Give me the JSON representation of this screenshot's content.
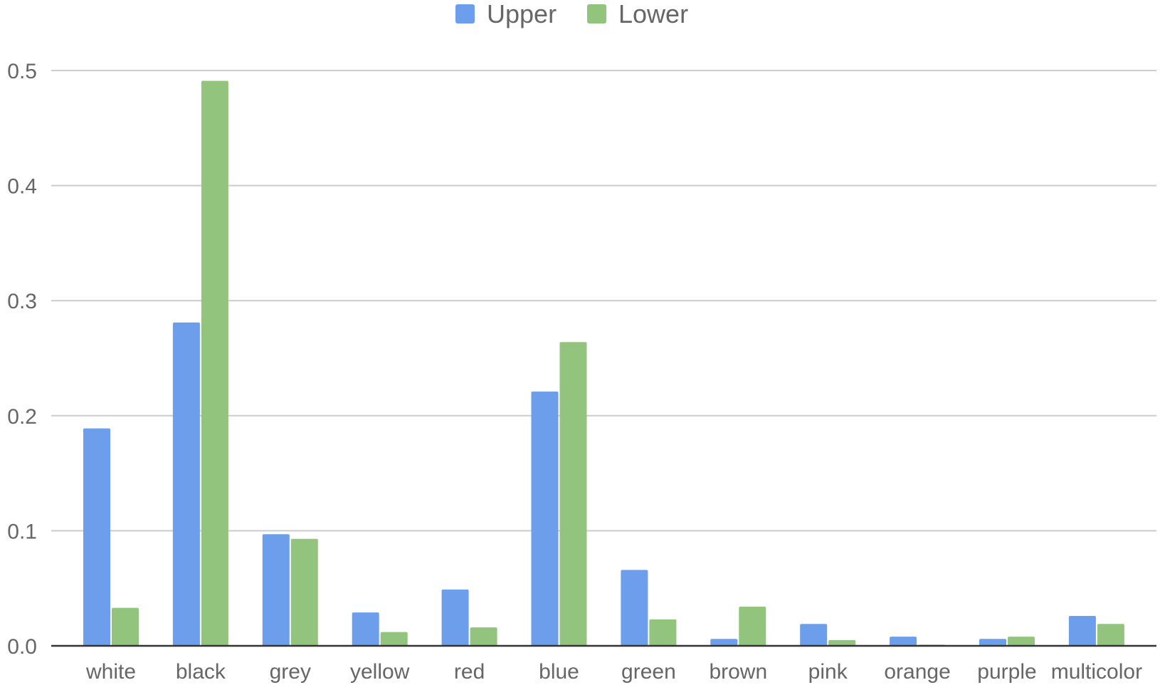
{
  "chart_data": {
    "type": "bar",
    "categories": [
      "white",
      "black",
      "grey",
      "yellow",
      "red",
      "blue",
      "green",
      "brown",
      "pink",
      "orange",
      "purple",
      "multicolor"
    ],
    "series": [
      {
        "name": "Upper",
        "color": "#6d9eeb",
        "values": [
          0.189,
          0.281,
          0.097,
          0.029,
          0.049,
          0.221,
          0.066,
          0.006,
          0.019,
          0.008,
          0.006,
          0.026
        ]
      },
      {
        "name": "Lower",
        "color": "#93c47d",
        "values": [
          0.033,
          0.491,
          0.093,
          0.012,
          0.016,
          0.264,
          0.023,
          0.034,
          0.005,
          0.001,
          0.008,
          0.019
        ]
      }
    ],
    "ylim": [
      0,
      0.5
    ],
    "yticks": [
      "0.0",
      "0.1",
      "0.2",
      "0.3",
      "0.4",
      "0.5"
    ],
    "grid": true,
    "legend": "top-center",
    "title": "",
    "xlabel": "",
    "ylabel": ""
  }
}
